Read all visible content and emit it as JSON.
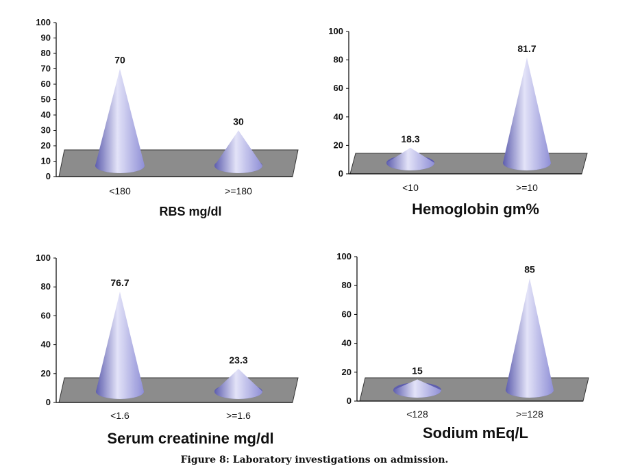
{
  "caption": "Figure 8: Laboratory investigations on admission.",
  "colors": {
    "cone": "#8f8fd6",
    "cone_light": "#e3e3f8",
    "cone_dark": "#5e5eae",
    "floor": "#8c8c8c"
  },
  "chart_data": [
    {
      "type": "bar",
      "title": "RBS mg/dl",
      "categories": [
        "<180",
        ">=180"
      ],
      "values": [
        70,
        30
      ],
      "value_labels": [
        "70",
        "30"
      ],
      "ylim": [
        0,
        100
      ],
      "yticks": [
        0,
        10,
        20,
        30,
        40,
        50,
        60,
        70,
        80,
        90,
        100
      ],
      "grid": false,
      "bar_shape": "cone"
    },
    {
      "type": "bar",
      "title": "Hemoglobin gm%",
      "categories": [
        "<10",
        ">=10"
      ],
      "values": [
        18.3,
        81.7
      ],
      "value_labels": [
        "18.3",
        "81.7"
      ],
      "ylim": [
        0,
        100
      ],
      "yticks": [
        0,
        20,
        40,
        60,
        80,
        100
      ],
      "grid": false,
      "bar_shape": "cone"
    },
    {
      "type": "bar",
      "title": "Serum creatinine mg/dl",
      "categories": [
        "<1.6",
        ">=1.6"
      ],
      "values": [
        76.7,
        23.3
      ],
      "value_labels": [
        "76.7",
        "23.3"
      ],
      "ylim": [
        0,
        100
      ],
      "yticks": [
        0,
        20,
        40,
        60,
        80,
        100
      ],
      "grid": false,
      "bar_shape": "cone"
    },
    {
      "type": "bar",
      "title": "Sodium mEq/L",
      "categories": [
        "<128",
        ">=128"
      ],
      "values": [
        15,
        85
      ],
      "value_labels": [
        "15",
        "85"
      ],
      "ylim": [
        0,
        100
      ],
      "yticks": [
        0,
        20,
        40,
        60,
        80,
        100
      ],
      "grid": false,
      "bar_shape": "cone"
    }
  ]
}
